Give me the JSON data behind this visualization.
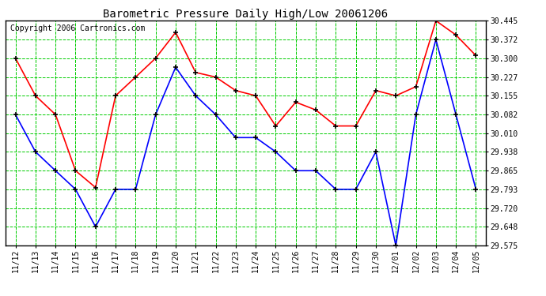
{
  "title": "Barometric Pressure Daily High/Low 20061206",
  "copyright": "Copyright 2006 Cartronics.com",
  "dates": [
    "11/12",
    "11/13",
    "11/14",
    "11/15",
    "11/16",
    "11/17",
    "11/18",
    "11/19",
    "11/20",
    "11/21",
    "11/22",
    "11/23",
    "11/24",
    "11/25",
    "11/26",
    "11/27",
    "11/28",
    "11/29",
    "11/30",
    "12/01",
    "12/02",
    "12/03",
    "12/04",
    "12/05"
  ],
  "high_values": [
    30.3,
    30.155,
    30.082,
    29.865,
    29.8,
    30.155,
    30.227,
    30.3,
    30.4,
    30.245,
    30.227,
    30.175,
    30.155,
    30.038,
    30.13,
    30.1,
    30.038,
    30.038,
    30.175,
    30.155,
    30.19,
    30.445,
    30.39,
    30.31
  ],
  "low_values": [
    30.082,
    29.938,
    29.865,
    29.793,
    29.648,
    29.793,
    29.793,
    30.082,
    30.265,
    30.155,
    30.082,
    29.993,
    29.993,
    29.938,
    29.865,
    29.865,
    29.793,
    29.793,
    29.938,
    29.575,
    30.082,
    30.372,
    30.082,
    29.793
  ],
  "high_color": "#ff0000",
  "low_color": "#0000ff",
  "bg_color": "#ffffff",
  "grid_color": "#00cc00",
  "ylim_min": 29.575,
  "ylim_max": 30.445,
  "yticks": [
    29.575,
    29.648,
    29.72,
    29.793,
    29.865,
    29.938,
    30.01,
    30.082,
    30.155,
    30.227,
    30.3,
    30.372,
    30.445
  ],
  "title_fontsize": 10,
  "tick_fontsize": 7,
  "copyright_fontsize": 7
}
